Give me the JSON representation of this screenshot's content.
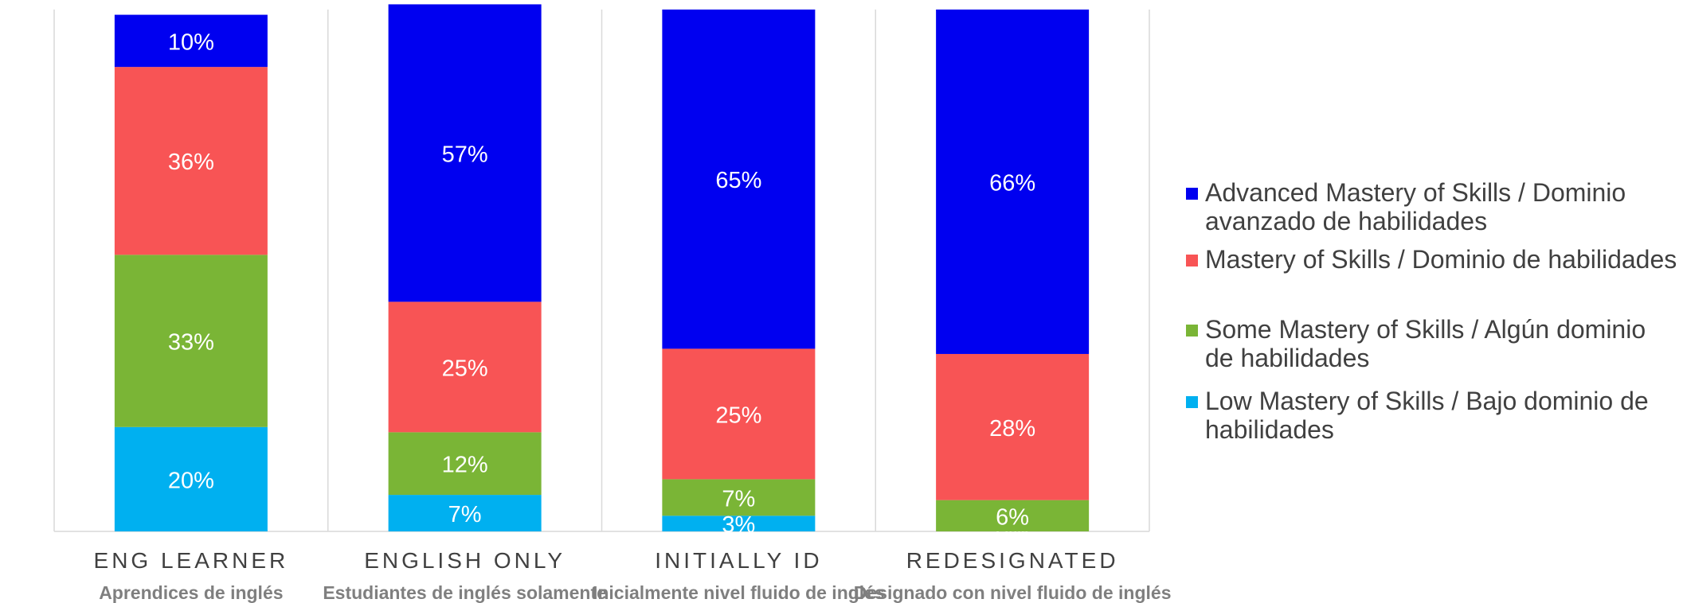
{
  "chart_data": {
    "type": "bar",
    "stacked": true,
    "normalized": true,
    "ylim": [
      0,
      100
    ],
    "categories": [
      "ENG LEARNER",
      "ENGLISH ONLY",
      "INITIALLY ID",
      "REDESIGNATED"
    ],
    "subcategories": [
      "Aprendices de inglés",
      "Estudiantes de inglés solamente",
      "Inicialmente nivel fluido de inglés",
      "Designado con nivel fluido de inglés"
    ],
    "series": [
      {
        "name": "Low Mastery of Skills / Bajo dominio de habilidades",
        "color": "#00b0f0",
        "values": [
          20,
          7,
          3,
          0
        ],
        "labels": [
          "20%",
          "7%",
          "3%",
          "0%"
        ]
      },
      {
        "name": "Some Mastery of Skills / Algún dominio de habilidades",
        "color": "#7ab536",
        "values": [
          33,
          12,
          7,
          6
        ],
        "labels": [
          "33%",
          "12%",
          "7%",
          "6%"
        ]
      },
      {
        "name": "Mastery of Skills / Dominio de habilidades",
        "color": "#f85455",
        "values": [
          36,
          25,
          25,
          28
        ],
        "labels": [
          "36%",
          "25%",
          "25%",
          "28%"
        ]
      },
      {
        "name": "Advanced Mastery of Skills / Dominio avanzado de habilidades",
        "color": "#0000f0",
        "values": [
          10,
          57,
          65,
          66
        ],
        "labels": [
          "10%",
          "57%",
          "65%",
          "66%"
        ]
      }
    ],
    "legend_placement": "right",
    "legend_order": [
      3,
      2,
      1,
      0
    ],
    "grid": false
  }
}
